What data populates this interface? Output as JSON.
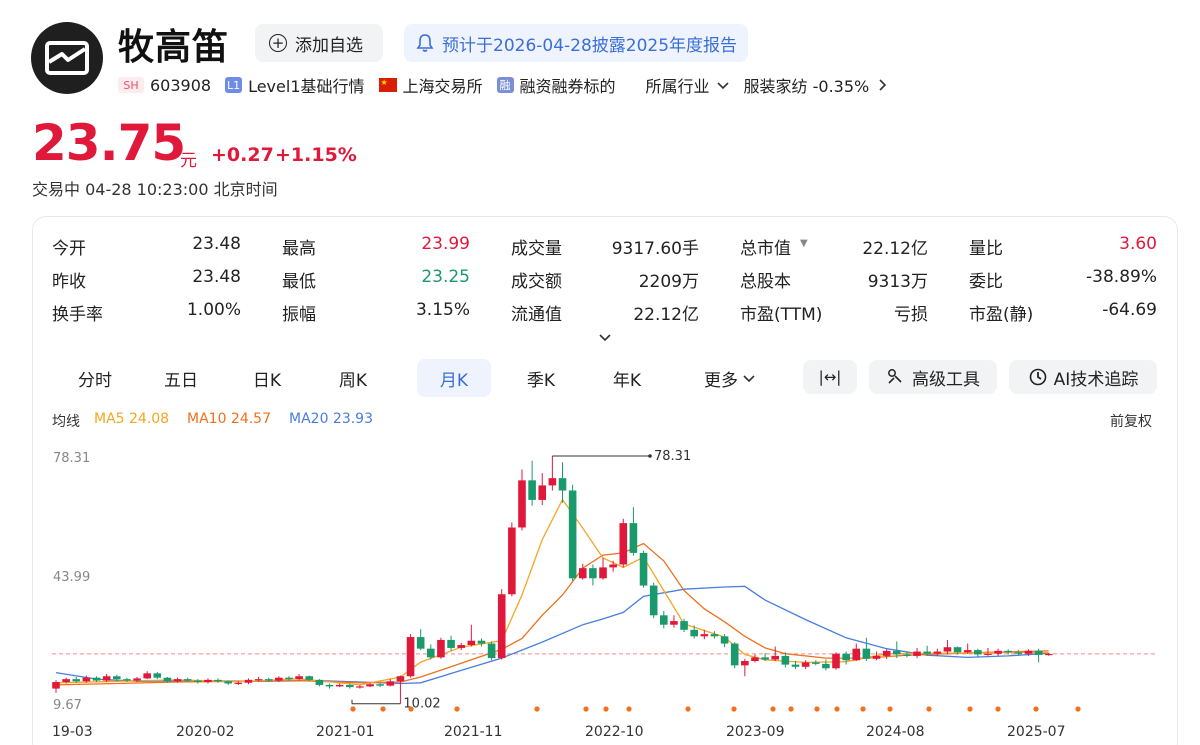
{
  "header": {
    "name": "牧高笛",
    "add_watchlist": "添加自选",
    "notice": "预计于2026-04-28披露2025年度报告",
    "market_tag": "SH",
    "code": "603908",
    "level_tag": "L1",
    "level": "Level1基础行情",
    "exchange": "上海交易所",
    "margin_tag": "融",
    "margin": "融资融券标的",
    "industry_label": "所属行业",
    "industry": "服装家纺 -0.35%"
  },
  "quote": {
    "price": "23.75",
    "unit": "元",
    "change": "+0.27",
    "change_pct": "+1.15%",
    "status": "交易中  04-28 10:23:00 北京时间"
  },
  "stats": [
    {
      "label": "今开",
      "value": "23.48",
      "color": "#222222"
    },
    {
      "label": "最高",
      "value": "23.99",
      "color": "#e0193b"
    },
    {
      "label": "成交量",
      "value": "9317.60手",
      "color": "#222222"
    },
    {
      "label": "总市值",
      "value": "22.12亿",
      "color": "#222222"
    },
    {
      "label": "量比",
      "value": "3.60",
      "color": "#e0193b"
    },
    {
      "label": "昨收",
      "value": "23.48",
      "color": "#222222"
    },
    {
      "label": "最低",
      "value": "23.25",
      "color": "#1a9a6c"
    },
    {
      "label": "成交额",
      "value": "2209万",
      "color": "#222222"
    },
    {
      "label": "总股本",
      "value": "9313万",
      "color": "#222222"
    },
    {
      "label": "委比",
      "value": "-38.89%",
      "color": "#222222"
    },
    {
      "label": "换手率",
      "value": "1.00%",
      "color": "#222222"
    },
    {
      "label": "振幅",
      "value": "3.15%",
      "color": "#222222"
    },
    {
      "label": "流通值",
      "value": "22.12亿",
      "color": "#222222"
    },
    {
      "label": "市盈(TTM)",
      "value": "亏损",
      "color": "#222222"
    },
    {
      "label": "市盈(静)",
      "value": "-64.69",
      "color": "#222222"
    }
  ],
  "tabs": [
    "分时",
    "五日",
    "日K",
    "周K",
    "月K",
    "季K",
    "年K",
    "更多"
  ],
  "active_tab": "月K",
  "tools": {
    "expand": "|↔|",
    "advanced": "高级工具",
    "ai": "AI技术追踪"
  },
  "ma": {
    "label": "均线",
    "ma5": "MA5 24.08",
    "ma10": "MA10 24.57",
    "ma20": "MA20 23.93",
    "adjust": "前复权",
    "colors": {
      "ma5": "#f5a623",
      "ma10": "#f0701e",
      "ma20": "#4a7de0"
    }
  },
  "chart_data": {
    "type": "candlestick",
    "y_ticks": [
      "78.31",
      "43.99",
      "9.67"
    ],
    "high_label": "78.31",
    "low_label": "10.02",
    "x_labels": [
      "19-03",
      "2020-02",
      "2021-01",
      "2021-11",
      "2022-10",
      "2023-09",
      "2024-08",
      "2025-07"
    ],
    "ylim": [
      9.67,
      78.31
    ],
    "last_price": 23.75,
    "colors": {
      "up": "#e0193b",
      "down": "#1a9a6c",
      "ma5": "#f5a623",
      "ma10": "#f0701e",
      "ma20": "#4a7de0"
    },
    "candles": [
      [
        14.2,
        16.0,
        13.0,
        16.5
      ],
      [
        16.0,
        16.8,
        15.6,
        17.2
      ],
      [
        16.8,
        16.2,
        15.8,
        17.4
      ],
      [
        16.2,
        17.2,
        15.8,
        17.8
      ],
      [
        17.2,
        16.4,
        16.0,
        17.6
      ],
      [
        16.4,
        17.6,
        16.0,
        18.2
      ],
      [
        17.6,
        16.8,
        16.2,
        18.0
      ],
      [
        16.8,
        16.4,
        16.0,
        17.2
      ],
      [
        16.4,
        17.0,
        16.0,
        17.4
      ],
      [
        17.0,
        18.4,
        16.8,
        19.0
      ],
      [
        18.4,
        17.2,
        16.8,
        18.8
      ],
      [
        17.2,
        16.2,
        15.8,
        17.4
      ],
      [
        16.2,
        16.8,
        15.8,
        17.2
      ],
      [
        16.8,
        16.4,
        16.0,
        17.2
      ],
      [
        16.4,
        16.0,
        15.6,
        16.8
      ],
      [
        16.0,
        16.6,
        15.6,
        17.0
      ],
      [
        16.6,
        16.2,
        15.8,
        17.0
      ],
      [
        16.2,
        15.6,
        15.2,
        16.4
      ],
      [
        15.6,
        15.8,
        15.2,
        16.2
      ],
      [
        15.8,
        16.6,
        15.4,
        17.0
      ],
      [
        16.6,
        16.8,
        16.2,
        17.4
      ],
      [
        16.8,
        16.4,
        16.0,
        17.2
      ],
      [
        16.4,
        17.2,
        16.0,
        17.6
      ],
      [
        17.2,
        16.8,
        16.4,
        17.6
      ],
      [
        16.8,
        17.6,
        16.4,
        18.2
      ],
      [
        17.6,
        16.6,
        16.2,
        17.8
      ],
      [
        16.6,
        15.2,
        14.8,
        16.8
      ],
      [
        15.2,
        14.8,
        14.2,
        15.6
      ],
      [
        14.8,
        15.2,
        14.6,
        15.6
      ],
      [
        15.2,
        14.6,
        14.2,
        15.6
      ],
      [
        14.6,
        14.8,
        14.2,
        15.2
      ],
      [
        14.8,
        15.4,
        14.6,
        15.8
      ],
      [
        15.4,
        15.0,
        14.6,
        15.6
      ],
      [
        15.0,
        16.2,
        14.8,
        16.8
      ],
      [
        16.2,
        17.6,
        10.02,
        17.8
      ],
      [
        17.6,
        28.4,
        17.2,
        29.2
      ],
      [
        28.4,
        25.2,
        24.8,
        30.6
      ],
      [
        25.2,
        22.8,
        22.2,
        26.4
      ],
      [
        22.8,
        27.6,
        22.4,
        28.2
      ],
      [
        27.6,
        25.4,
        24.6,
        28.8
      ],
      [
        25.4,
        26.2,
        24.8,
        26.8
      ],
      [
        26.2,
        27.4,
        25.8,
        31.8
      ],
      [
        27.4,
        26.6,
        25.8,
        28.0
      ],
      [
        26.6,
        22.6,
        22.0,
        27.2
      ],
      [
        22.6,
        40.2,
        22.2,
        41.6
      ],
      [
        40.2,
        58.6,
        39.6,
        60.0
      ],
      [
        58.6,
        71.6,
        57.8,
        74.6
      ],
      [
        71.6,
        66.2,
        64.6,
        77.0
      ],
      [
        66.2,
        70.2,
        64.8,
        73.6
      ],
      [
        70.2,
        72.2,
        68.8,
        78.31
      ],
      [
        72.2,
        68.8,
        65.4,
        76.6
      ],
      [
        68.8,
        44.6,
        43.8,
        70.4
      ],
      [
        44.6,
        47.4,
        44.2,
        48.6
      ],
      [
        47.4,
        44.6,
        42.6,
        48.4
      ],
      [
        44.6,
        47.6,
        44.2,
        50.2
      ],
      [
        47.6,
        48.4,
        46.4,
        49.4
      ],
      [
        48.4,
        59.8,
        47.6,
        61.0
      ],
      [
        59.8,
        51.6,
        50.8,
        64.2
      ],
      [
        51.6,
        42.6,
        42.0,
        52.2
      ],
      [
        42.6,
        34.4,
        33.6,
        43.4
      ],
      [
        34.4,
        31.8,
        30.8,
        35.6
      ],
      [
        31.8,
        32.8,
        31.0,
        34.4
      ],
      [
        32.8,
        30.4,
        29.8,
        33.4
      ],
      [
        30.4,
        28.6,
        28.0,
        31.6
      ],
      [
        28.6,
        29.2,
        27.8,
        30.4
      ],
      [
        29.2,
        28.6,
        28.0,
        30.0
      ],
      [
        28.6,
        26.6,
        25.6,
        29.2
      ],
      [
        26.6,
        20.6,
        19.8,
        27.0
      ],
      [
        20.6,
        21.8,
        17.6,
        22.4
      ],
      [
        21.8,
        22.8,
        21.4,
        23.6
      ],
      [
        22.8,
        22.2,
        21.8,
        24.0
      ],
      [
        22.2,
        23.2,
        21.8,
        25.8
      ],
      [
        23.2,
        20.8,
        20.0,
        24.2
      ],
      [
        20.8,
        20.2,
        19.6,
        21.8
      ],
      [
        20.2,
        21.4,
        19.6,
        22.0
      ],
      [
        21.4,
        21.0,
        20.6,
        22.0
      ],
      [
        21.0,
        19.8,
        19.2,
        22.2
      ],
      [
        19.8,
        23.8,
        19.4,
        24.2
      ],
      [
        23.8,
        22.0,
        20.8,
        24.4
      ],
      [
        22.0,
        25.2,
        21.8,
        26.6
      ],
      [
        25.2,
        22.4,
        21.8,
        28.2
      ],
      [
        22.4,
        23.2,
        22.0,
        24.4
      ],
      [
        23.2,
        24.6,
        22.4,
        25.0
      ],
      [
        24.6,
        23.6,
        22.6,
        27.2
      ],
      [
        23.6,
        23.2,
        22.8,
        24.4
      ],
      [
        23.2,
        24.4,
        22.6,
        25.4
      ],
      [
        24.4,
        23.8,
        23.2,
        26.0
      ],
      [
        23.8,
        24.4,
        23.2,
        25.2
      ],
      [
        24.4,
        25.6,
        23.6,
        27.6
      ],
      [
        25.6,
        24.2,
        23.6,
        25.8
      ],
      [
        24.2,
        24.8,
        23.8,
        26.6
      ],
      [
        24.8,
        23.6,
        23.0,
        25.2
      ],
      [
        23.6,
        23.8,
        23.2,
        25.4
      ],
      [
        23.8,
        24.6,
        23.2,
        25.2
      ],
      [
        24.6,
        24.2,
        23.6,
        25.0
      ],
      [
        24.2,
        23.8,
        23.2,
        24.8
      ],
      [
        23.8,
        24.6,
        23.2,
        25.0
      ],
      [
        24.6,
        23.48,
        21.4,
        25.2
      ],
      [
        23.48,
        23.75,
        23.25,
        23.99
      ]
    ],
    "ma5": [
      [
        0,
        15.8
      ],
      [
        6,
        16.2
      ],
      [
        12,
        16.6
      ],
      [
        18,
        16.1
      ],
      [
        24,
        16.9
      ],
      [
        30,
        15.2
      ],
      [
        34,
        17.4
      ],
      [
        36,
        21.5
      ],
      [
        40,
        25.6
      ],
      [
        44,
        27.4
      ],
      [
        46,
        40.0
      ],
      [
        48,
        55.2
      ],
      [
        50,
        66.3
      ],
      [
        52,
        58.4
      ],
      [
        54,
        50.2
      ],
      [
        56,
        47.6
      ],
      [
        58,
        50.4
      ],
      [
        60,
        41.2
      ],
      [
        62,
        32.0
      ],
      [
        64,
        30.2
      ],
      [
        66,
        28.4
      ],
      [
        68,
        23.6
      ],
      [
        70,
        22.1
      ],
      [
        74,
        21.4
      ],
      [
        78,
        21.6
      ],
      [
        82,
        23.8
      ],
      [
        86,
        23.9
      ],
      [
        90,
        24.0
      ],
      [
        94,
        24.2
      ],
      [
        98,
        24.08
      ]
    ],
    "ma10": [
      [
        0,
        15.2
      ],
      [
        6,
        15.6
      ],
      [
        12,
        16.0
      ],
      [
        18,
        16.2
      ],
      [
        24,
        16.4
      ],
      [
        30,
        15.8
      ],
      [
        34,
        16.0
      ],
      [
        36,
        17.4
      ],
      [
        40,
        21.2
      ],
      [
        44,
        25.0
      ],
      [
        46,
        28.0
      ],
      [
        48,
        34.4
      ],
      [
        50,
        40.0
      ],
      [
        52,
        47.4
      ],
      [
        54,
        51.0
      ],
      [
        56,
        51.6
      ],
      [
        58,
        54.2
      ],
      [
        60,
        49.4
      ],
      [
        62,
        41.2
      ],
      [
        64,
        36.2
      ],
      [
        66,
        32.6
      ],
      [
        68,
        28.6
      ],
      [
        70,
        25.4
      ],
      [
        72,
        23.8
      ],
      [
        76,
        22.6
      ],
      [
        80,
        22.6
      ],
      [
        84,
        23.4
      ],
      [
        88,
        23.8
      ],
      [
        92,
        24.2
      ],
      [
        98,
        24.57
      ]
    ],
    "ma20": [
      [
        0,
        18.6
      ],
      [
        4,
        16.8
      ],
      [
        8,
        16.2
      ],
      [
        14,
        16.4
      ],
      [
        20,
        16.2
      ],
      [
        26,
        16.4
      ],
      [
        30,
        16.0
      ],
      [
        34,
        15.6
      ],
      [
        36,
        15.8
      ],
      [
        40,
        19.2
      ],
      [
        44,
        22.6
      ],
      [
        48,
        27.0
      ],
      [
        52,
        31.8
      ],
      [
        54,
        33.4
      ],
      [
        56,
        35.2
      ],
      [
        58,
        39.6
      ],
      [
        62,
        41.6
      ],
      [
        66,
        42.2
      ],
      [
        68,
        42.4
      ],
      [
        70,
        38.6
      ],
      [
        74,
        33.2
      ],
      [
        78,
        28.2
      ],
      [
        82,
        25.2
      ],
      [
        86,
        23.4
      ],
      [
        90,
        22.8
      ],
      [
        94,
        23.2
      ],
      [
        98,
        23.93
      ]
    ]
  },
  "markers": [
    "dot",
    "dot",
    "dot",
    "dot",
    "dot",
    "dot",
    "dot",
    "dot",
    "dot",
    "dot",
    "dot",
    "dot",
    "dot",
    "dot",
    "dot",
    "dot",
    "dot",
    "dot",
    "dot",
    "dot",
    "dot"
  ]
}
